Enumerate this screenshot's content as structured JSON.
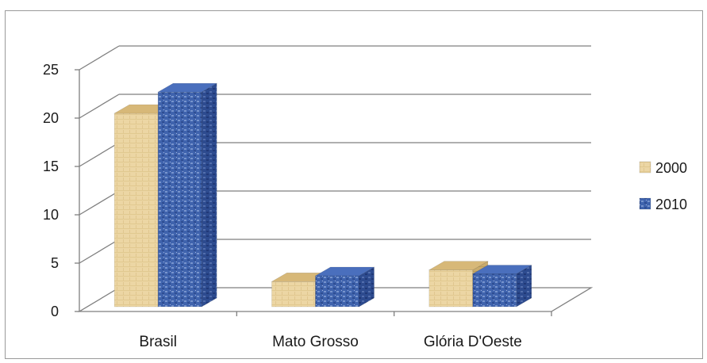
{
  "chart_data": {
    "type": "bar",
    "categories": [
      "Brasil",
      "Mato Grosso",
      "Glória D'Oeste"
    ],
    "series": [
      {
        "name": "2000",
        "values": [
          20,
          2.6,
          3.8
        ],
        "color": "#e8cf98"
      },
      {
        "name": "2010",
        "values": [
          22.2,
          3.2,
          3.4
        ],
        "color": "#3a5ea8"
      }
    ],
    "ylim": [
      0,
      25
    ],
    "yticks": [
      0,
      5,
      10,
      15,
      20,
      25
    ],
    "grid": true,
    "legend_position": "right",
    "title": "",
    "xlabel": "",
    "ylabel": ""
  }
}
